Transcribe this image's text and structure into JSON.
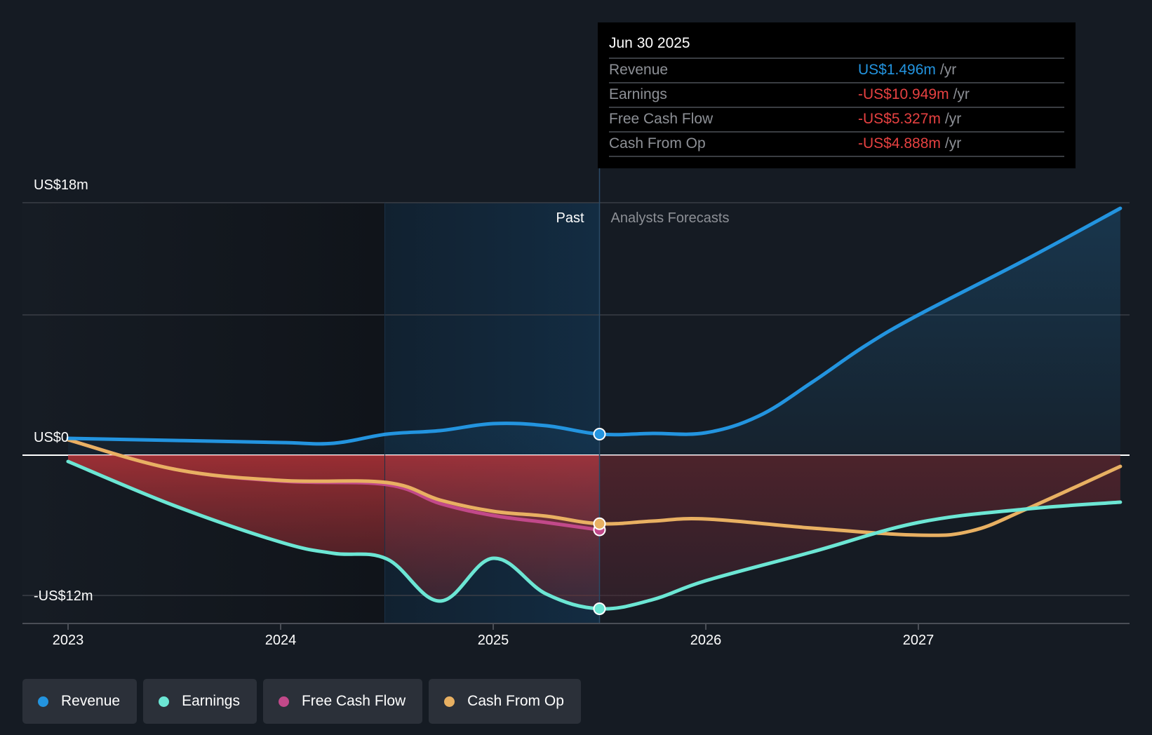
{
  "tooltip": {
    "date": "Jun 30 2025",
    "rows": [
      {
        "label": "Revenue",
        "value": "US$1.496m",
        "unit": "/yr",
        "color": "#2394df"
      },
      {
        "label": "Earnings",
        "value": "-US$10.949m",
        "unit": "/yr",
        "color": "#e64141"
      },
      {
        "label": "Free Cash Flow",
        "value": "-US$5.327m",
        "unit": "/yr",
        "color": "#e64141"
      },
      {
        "label": "Cash From Op",
        "value": "-US$4.888m",
        "unit": "/yr",
        "color": "#e64141"
      }
    ]
  },
  "regions": {
    "past": "Past",
    "forecast": "Analysts Forecasts"
  },
  "legend": [
    {
      "label": "Revenue",
      "color": "#2394df"
    },
    {
      "label": "Earnings",
      "color": "#6ce6d4"
    },
    {
      "label": "Free Cash Flow",
      "color": "#c2498a"
    },
    {
      "label": "Cash From Op",
      "color": "#e8b062"
    }
  ],
  "chart_data": {
    "type": "line",
    "title": "",
    "xlabel": "",
    "ylabel": "",
    "x_ticks": [
      2023,
      2024,
      2025,
      2026,
      2027
    ],
    "x_tick_labels": [
      "2023",
      "2024",
      "2025",
      "2026",
      "2027"
    ],
    "xlim": [
      2022.8,
      2027.95
    ],
    "ylim": [
      -12,
      18
    ],
    "y_tick_labels": [
      {
        "value": 18,
        "label": "US$18m"
      },
      {
        "value": 0,
        "label": "US$0"
      },
      {
        "value": -12,
        "label": "-US$12m"
      }
    ],
    "gridlines": [
      18,
      10,
      0,
      -10
    ],
    "past_highlight_start": 2024.49,
    "divider_x": 2025.5,
    "divider_label": "Jun 30 2025",
    "legend_position": "bottom-left",
    "units": "US$ millions",
    "series": [
      {
        "name": "Revenue",
        "color": "#2394df",
        "x": [
          2023,
          2023.5,
          2024,
          2024.25,
          2024.5,
          2024.75,
          2025,
          2025.25,
          2025.5,
          2025.75,
          2026,
          2026.25,
          2026.5,
          2026.75,
          2027,
          2027.5,
          2027.95
        ],
        "y": [
          1.2,
          1.05,
          0.9,
          0.85,
          1.5,
          1.75,
          2.25,
          2.1,
          1.5,
          1.55,
          1.6,
          2.8,
          5.2,
          7.8,
          10.0,
          13.9,
          17.6
        ]
      },
      {
        "name": "Earnings",
        "color": "#6ce6d4",
        "x": [
          2023,
          2023.5,
          2024,
          2024.25,
          2024.5,
          2024.75,
          2025,
          2025.25,
          2025.5,
          2025.75,
          2026,
          2026.5,
          2027,
          2027.5,
          2027.95
        ],
        "y": [
          -0.45,
          -3.6,
          -6.2,
          -7.0,
          -7.4,
          -10.4,
          -7.35,
          -9.9,
          -10.949,
          -10.3,
          -8.95,
          -6.9,
          -4.8,
          -3.85,
          -3.35
        ]
      },
      {
        "name": "Free Cash Flow",
        "color": "#c2498a",
        "x": [
          2023,
          2023.5,
          2024,
          2024.5,
          2024.75,
          2025,
          2025.25,
          2025.5
        ],
        "y": [
          1.1,
          -1.0,
          -1.85,
          -2.1,
          -3.45,
          -4.3,
          -4.8,
          -5.327
        ]
      },
      {
        "name": "Cash From Op",
        "color": "#e8b062",
        "x": [
          2023,
          2023.5,
          2024,
          2024.5,
          2024.75,
          2025,
          2025.25,
          2025.5,
          2025.75,
          2026,
          2026.5,
          2027,
          2027.25,
          2027.5,
          2027.95
        ],
        "y": [
          1.1,
          -1.0,
          -1.8,
          -1.95,
          -3.2,
          -4.0,
          -4.35,
          -4.888,
          -4.7,
          -4.55,
          -5.2,
          -5.7,
          -5.4,
          -3.9,
          -0.8
        ]
      }
    ]
  }
}
